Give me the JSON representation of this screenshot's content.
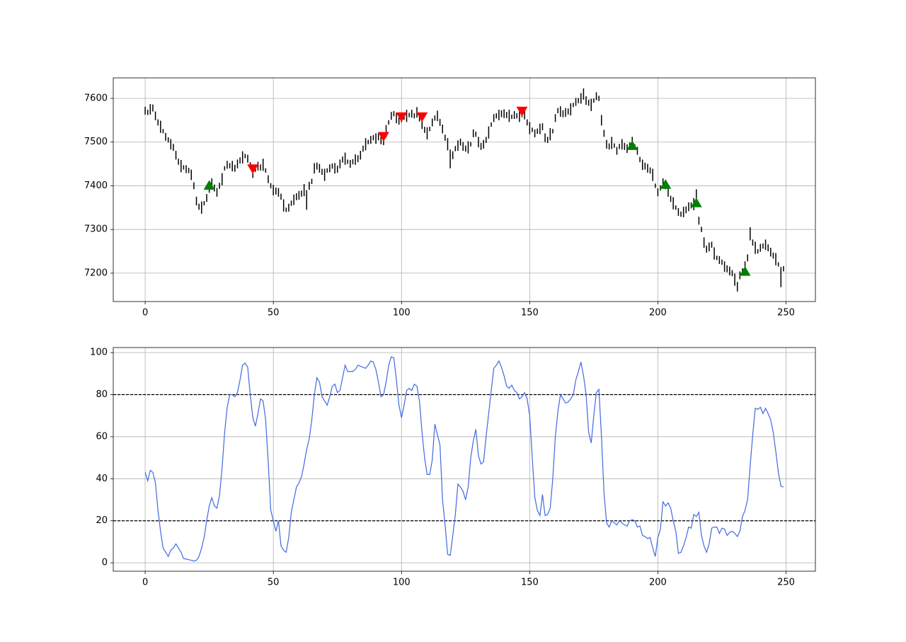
{
  "chart_data": [
    {
      "type": "range_bar",
      "color": "#000000",
      "grid": true,
      "xlim": [
        -12.45,
        261.45
      ],
      "xticks": [
        0,
        50,
        100,
        150,
        200,
        250
      ],
      "ylim": [
        7135,
        7647
      ],
      "yticks": [
        7200,
        7300,
        7400,
        7500,
        7600
      ],
      "high": [
        7581,
        7574,
        7587,
        7586,
        7570,
        7552,
        7549,
        7530,
        7521,
        7511,
        7507,
        7496,
        7480,
        7462,
        7459,
        7447,
        7447,
        7441,
        7437,
        7408,
        7375,
        7359,
        7364,
        7365,
        7381,
        7396,
        7417,
        7403,
        7395,
        7407,
        7429,
        7445,
        7457,
        7452,
        7457,
        7448,
        7460,
        7465,
        7479,
        7473,
        7471,
        7454,
        7442,
        7448,
        7455,
        7449,
        7462,
        7440,
        7424,
        7406,
        7402,
        7396,
        7395,
        7382,
        7369,
        7350,
        7359,
        7366,
        7380,
        7383,
        7388,
        7389,
        7404,
        7390,
        7409,
        7416,
        7452,
        7453,
        7450,
        7439,
        7439,
        7440,
        7449,
        7451,
        7452,
        7446,
        7460,
        7467,
        7476,
        7460,
        7459,
        7461,
        7472,
        7470,
        7480,
        7492,
        7509,
        7505,
        7514,
        7516,
        7520,
        7520,
        7515,
        7507,
        7539,
        7550,
        7569,
        7571,
        7567,
        7556,
        7565,
        7565,
        7574,
        7567,
        7574,
        7566,
        7580,
        7563,
        7550,
        7535,
        7534,
        7535,
        7554,
        7561,
        7572,
        7553,
        7540,
        7517,
        7509,
        7483,
        7479,
        7491,
        7504,
        7508,
        7500,
        7492,
        7502,
        7500,
        7529,
        7524,
        7512,
        7498,
        7505,
        7512,
        7536,
        7545,
        7564,
        7566,
        7574,
        7573,
        7575,
        7569,
        7574,
        7563,
        7571,
        7566,
        7570,
        7573,
        7572,
        7552,
        7546,
        7533,
        7529,
        7531,
        7542,
        7543,
        7520,
        7512,
        7532,
        7530,
        7564,
        7578,
        7582,
        7573,
        7578,
        7577,
        7589,
        7590,
        7601,
        7601,
        7612,
        7623,
        7605,
        7597,
        7599,
        7600,
        7614,
        7606,
        7562,
        7528,
        7505,
        7497,
        7512,
        7497,
        7489,
        7496,
        7507,
        7498,
        7495,
        7499,
        7512,
        7495,
        7489,
        7466,
        7460,
        7453,
        7450,
        7442,
        7439,
        7405,
        7394,
        7401,
        7417,
        7408,
        7395,
        7377,
        7374,
        7355,
        7349,
        7341,
        7352,
        7353,
        7362,
        7362,
        7372,
        7392,
        7329,
        7306,
        7282,
        7263,
        7270,
        7272,
        7259,
        7240,
        7239,
        7231,
        7227,
        7218,
        7215,
        7207,
        7199,
        7180,
        7204,
        7211,
        7227,
        7243,
        7305,
        7277,
        7272,
        7255,
        7267,
        7268,
        7277,
        7266,
        7258,
        7247,
        7246,
        7225,
        7214,
        7216
      ],
      "low": [
        7563,
        7562,
        7563,
        7570,
        7550,
        7538,
        7521,
        7520,
        7503,
        7499,
        7483,
        7480,
        7460,
        7448,
        7431,
        7437,
        7429,
        7429,
        7413,
        7392,
        7355,
        7345,
        7336,
        7355,
        7363,
        7384,
        7393,
        7387,
        7375,
        7393,
        7401,
        7435,
        7439,
        7440,
        7433,
        7432,
        7440,
        7451,
        7451,
        7463,
        7453,
        7442,
        7418,
        7432,
        7435,
        7435,
        7434,
        7430,
        7406,
        7394,
        7378,
        7380,
        7375,
        7368,
        7341,
        7340,
        7341,
        7354,
        7356,
        7367,
        7368,
        7375,
        7376,
        7345,
        7391,
        7404,
        7428,
        7437,
        7430,
        7425,
        7411,
        7430,
        7431,
        7439,
        7428,
        7430,
        7440,
        7453,
        7448,
        7450,
        7441,
        7449,
        7448,
        7454,
        7460,
        7478,
        7481,
        7495,
        7496,
        7504,
        7496,
        7504,
        7495,
        7493,
        7511,
        7540,
        7551,
        7559,
        7543,
        7540,
        7545,
        7551,
        7546,
        7557,
        7556,
        7554,
        7556,
        7547,
        7530,
        7521,
        7506,
        7525,
        7536,
        7549,
        7548,
        7537,
        7520,
        7503,
        7481,
        7440,
        7461,
        7479,
        7480,
        7492,
        7480,
        7478,
        7474,
        7490,
        7511,
        7512,
        7488,
        7482,
        7485,
        7498,
        7508,
        7535,
        7546,
        7554,
        7550,
        7557,
        7555,
        7555,
        7546,
        7553,
        7553,
        7554,
        7546,
        7557,
        7552,
        7538,
        7518,
        7523,
        7511,
        7519,
        7518,
        7527,
        7500,
        7498,
        7504,
        7520,
        7546,
        7566,
        7558,
        7557,
        7558,
        7563,
        7561,
        7580,
        7583,
        7589,
        7588,
        7597,
        7585,
        7583,
        7571,
        7590,
        7596,
        7594,
        7538,
        7512,
        7485,
        7483,
        7484,
        7487,
        7471,
        7484,
        7483,
        7482,
        7475,
        7485,
        7484,
        7485,
        7471,
        7454,
        7436,
        7437,
        7430,
        7428,
        7411,
        7395,
        7376,
        7389,
        7393,
        7392,
        7375,
        7363,
        7346,
        7345,
        7331,
        7329,
        7328,
        7337,
        7342,
        7348,
        7344,
        7360,
        7311,
        7294,
        7258,
        7247,
        7250,
        7258,
        7231,
        7230,
        7221,
        7219,
        7203,
        7202,
        7195,
        7193,
        7171,
        7158,
        7186,
        7199,
        7203,
        7227,
        7275,
        7263,
        7244,
        7245,
        7249,
        7256,
        7253,
        7250,
        7238,
        7233,
        7218,
        7215,
        7168,
        7204
      ],
      "signals": [
        {
          "marker": "down",
          "color": "#ff0000",
          "x": [
            42,
            93,
            100,
            108,
            147
          ],
          "values": [
            7438,
            7512,
            7557,
            7557,
            7570
          ]
        },
        {
          "marker": "up",
          "color": "#008000",
          "x": [
            25,
            190,
            203,
            215,
            234
          ],
          "values": [
            7402,
            7493,
            7404,
            7362,
            7205
          ]
        }
      ]
    },
    {
      "type": "line",
      "grid": true,
      "xlim": [
        -12.45,
        261.45
      ],
      "xticks": [
        0,
        50,
        100,
        150,
        200,
        250
      ],
      "ylim": [
        -4.0,
        102.4
      ],
      "yticks": [
        0,
        20,
        40,
        60,
        80,
        100
      ],
      "hlines": [
        80,
        20
      ],
      "hline_color": "#000000",
      "series": [
        {
          "color": "#4169e1",
          "values": [
            43,
            39,
            44,
            43,
            38,
            25,
            15,
            7,
            5,
            3,
            6,
            7,
            9,
            7,
            5,
            2,
            1.8,
            1.5,
            1.2,
            0.8,
            1.2,
            3,
            7,
            12,
            20,
            27,
            31,
            27,
            26,
            32,
            45,
            62,
            74,
            80,
            80,
            79,
            81,
            87,
            94,
            95,
            93,
            80,
            69,
            65,
            71,
            78,
            77,
            68,
            48,
            25,
            20,
            15,
            20,
            8,
            6,
            5,
            12,
            24,
            30,
            36,
            38,
            41,
            47,
            54,
            59,
            68,
            80,
            88,
            86,
            79,
            77,
            75,
            79,
            84,
            85,
            81,
            82,
            88,
            94,
            91,
            91,
            91,
            92,
            94,
            93.5,
            93,
            92.5,
            94,
            96,
            95.5,
            92,
            86,
            79,
            80,
            86,
            94,
            98,
            97.5,
            87,
            75,
            69,
            75,
            82,
            83,
            82,
            85,
            84,
            77,
            62,
            50,
            42,
            42,
            49,
            66,
            61,
            56,
            30,
            18,
            4,
            3.5,
            13,
            23,
            37.5,
            36,
            34,
            30,
            36,
            50,
            58,
            63.5,
            51,
            47,
            48,
            60,
            71,
            82,
            92.5,
            94,
            96,
            93,
            89,
            84,
            83,
            84.5,
            82,
            81,
            78,
            79,
            81,
            78,
            70,
            50,
            31,
            25,
            22.5,
            32.5,
            22.5,
            23,
            26,
            40,
            60,
            72,
            80,
            78,
            76,
            76.5,
            78,
            80,
            87,
            91,
            95.5,
            89,
            80,
            62,
            57,
            70,
            81,
            82.5,
            60,
            33,
            19,
            17,
            20,
            19,
            18,
            20,
            19,
            18,
            17.5,
            20,
            20.5,
            20,
            17,
            17.5,
            13,
            12.5,
            11.5,
            12,
            7,
            3,
            12,
            16,
            29,
            27,
            28.5,
            26,
            20,
            15,
            4.5,
            5,
            8,
            12,
            17,
            16.5,
            23,
            22,
            24,
            13,
            8,
            5,
            9,
            16.5,
            17,
            17,
            14,
            16.5,
            16,
            13,
            14.5,
            15,
            14,
            12.5,
            15,
            22,
            25,
            30,
            46,
            61,
            73.5,
            73,
            74,
            71,
            73.5,
            71,
            68,
            62,
            53,
            43,
            36.5,
            36
          ]
        }
      ]
    }
  ]
}
